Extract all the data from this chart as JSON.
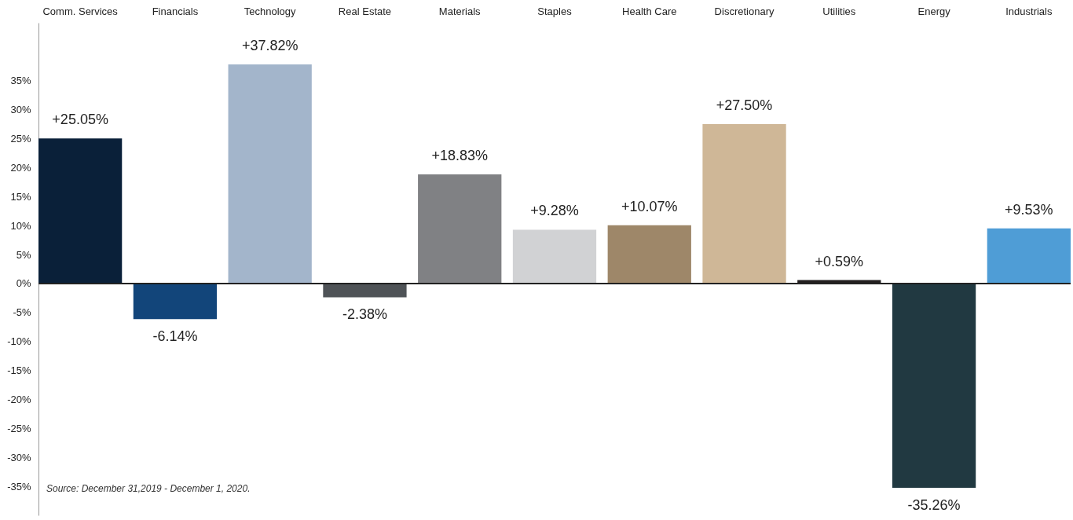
{
  "chart_data": {
    "type": "bar",
    "categories": [
      "Comm. Services",
      "Financials",
      "Technology",
      "Real Estate",
      "Materials",
      "Staples",
      "Health Care",
      "Discretionary",
      "Utilities",
      "Energy",
      "Industrials"
    ],
    "values": [
      25.05,
      -6.14,
      37.82,
      -2.38,
      18.83,
      9.28,
      10.07,
      27.5,
      0.59,
      -35.26,
      9.53
    ],
    "colors": [
      "#0a2039",
      "#12457a",
      "#a3b5cb",
      "#4f5357",
      "#808184",
      "#d1d2d4",
      "#9e8769",
      "#cfb797",
      "#231f20",
      "#213941",
      "#4f9dd6"
    ],
    "value_labels": [
      "+25.05%",
      "-6.14%",
      "+37.82%",
      "-2.38%",
      "+18.83%",
      "+9.28%",
      "+10.07%",
      "+27.50%",
      "+0.59%",
      "-35.26%",
      "+9.53%"
    ],
    "ylim": [
      -40,
      45
    ],
    "yticks": [
      {
        "value": -35,
        "label": "-35%"
      },
      {
        "value": -30,
        "label": "-30%"
      },
      {
        "value": -25,
        "label": "-25%"
      },
      {
        "value": -20,
        "label": "-20%"
      },
      {
        "value": -15,
        "label": "-15%"
      },
      {
        "value": -10,
        "label": "-10%"
      },
      {
        "value": -5,
        "label": "-5%"
      },
      {
        "value": 0,
        "label": "0%"
      },
      {
        "value": 5,
        "label": "5%"
      },
      {
        "value": 10,
        "label": "10%"
      },
      {
        "value": 15,
        "label": "15%"
      },
      {
        "value": 20,
        "label": "20%"
      },
      {
        "value": 25,
        "label": "25%"
      },
      {
        "value": 30,
        "label": "30%"
      },
      {
        "value": 35,
        "label": "35%"
      }
    ],
    "annotations": [
      "Source: December 31,2019 - December 1, 2020."
    ]
  }
}
